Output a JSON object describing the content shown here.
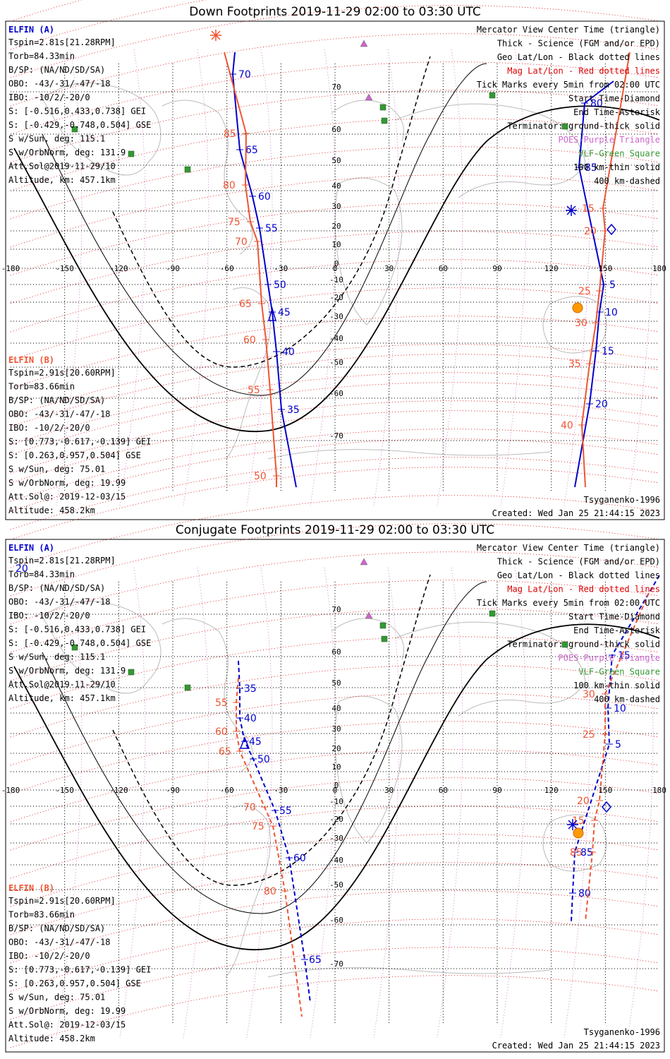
{
  "colors": {
    "elfin_a": "#0000cc",
    "elfin_b": "#ee5533",
    "mag_grid": "#dd0000",
    "geo_grid": "#000000",
    "poes": "#cc66cc",
    "vlf": "#339933",
    "sun": "#ff9900",
    "coast": "#bbbbbb"
  },
  "panels": [
    {
      "id": "down",
      "title": "Down Footprints 2019-11-29 02:00 to 03:30 UTC",
      "elfin_a_info": {
        "header": "ELFIN (A)",
        "lines": [
          "Tspin=2.81s[21.28RPM]",
          "Torb=84.33min",
          "B/SP: (NA/ND/SD/SA)",
          "OBO: -43/-31/-47/-18",
          "IBO: -10/2/-20/0",
          "S: [-0.516,0.433,0.738] GEI",
          "S: [-0.429,-0.748,0.504] GSE",
          "S w/Sun, deg: 115.1",
          "S w/OrbNorm, deg: 131.9",
          "Att.Sol@2019-11-29/10",
          "Altitude, km: 457.1km"
        ]
      },
      "elfin_b_info": {
        "header": "ELFIN (B)",
        "lines": [
          "Tspin=2.91s[20.60RPM]",
          "Torb=83.66min",
          "B/SP: (NA/ND/SD/SA)",
          "OBO: -43/-31/-47/-18",
          "IBO: -10/2/-20/0",
          "S: [0.773,-0.617,-0.139] GEI",
          "S: [0.263,0.957,0.504] GSE",
          "S w/Sun, deg: 75.01",
          "S w/OrbNorm, deg: 19.99",
          "Att.Sol@: 2019-12-03/15",
          "Altitude: 458.2km"
        ]
      },
      "legend": [
        {
          "text": "Mercator View Center Time (triangle)",
          "color": "#000000"
        },
        {
          "text": "Thick - Science (FGM and/or EPD)",
          "color": "#000000"
        },
        {
          "text": "Geo Lat/Lon - Black dotted lines",
          "color": "#000000"
        },
        {
          "text": "Mag Lat/Lon - Red dotted lines",
          "color": "#dd0000"
        },
        {
          "text": "Tick Marks every 5min from 02:00 UTC",
          "color": "#000000"
        },
        {
          "text": "Start Time-Diamond",
          "color": "#000000"
        },
        {
          "text": "End Time-Asterisk",
          "color": "#000000"
        },
        {
          "text": "Terminator: ground-thick solid",
          "color": "#000000"
        },
        {
          "text": "POES-Purple Triangle",
          "color": "#cc66cc"
        },
        {
          "text": "VLF-Green Square",
          "color": "#339933"
        },
        {
          "text": "100 km-thin solid",
          "color": "#000000"
        },
        {
          "text": "400 km-dashed",
          "color": "#000000"
        }
      ],
      "footer_left": "",
      "footer_right_model": "Tsyganenko-1996",
      "footer_right_created": "Created: Wed Jan 25 21:44:15 2023",
      "lon_ticks": [
        "-180",
        "-150",
        "-120",
        "-90",
        "-60",
        "-30",
        "0",
        "30",
        "60",
        "90",
        "120",
        "150",
        "180"
      ],
      "lat_ticks": [
        "70",
        "60",
        "50",
        "40",
        "30",
        "20",
        "10",
        "0",
        "-10",
        "-20",
        "-30",
        "-40",
        "-50",
        "-60",
        "-70"
      ],
      "track_a1_labels": [
        "70",
        "65",
        "60",
        "55",
        "50",
        "45",
        "40",
        "35"
      ],
      "track_b1_labels": [
        "85",
        "80",
        "75",
        "70",
        "65",
        "60",
        "55",
        "50"
      ],
      "track_a2_labels": [
        "80",
        "85",
        "5",
        "10",
        "15",
        "20"
      ],
      "track_b2_labels": [
        "15",
        "20",
        "25",
        "30",
        "35",
        "40"
      ]
    },
    {
      "id": "conj",
      "title": "Conjugate Footprints 2019-11-29 02:00 to 03:30 UTC",
      "elfin_a_info": {
        "header": "ELFIN (A)",
        "lines": [
          "Tspin=2.81s[21.28RPM]",
          "Torb=84.33min",
          "B/SP: (NA/ND/SD/SA)",
          "OBO: -43/-31/-47/-18",
          "IBO: -10/2/-20/0",
          "S: [-0.516,0.433,0.738] GEI",
          "S: [-0.429,-0.748,0.504] GSE",
          "S w/Sun, deg: 115.1",
          "S w/OrbNorm, deg: 131.9",
          "Att.Sol@2019-11-29/10",
          "Altitude, km: 457.1km"
        ]
      },
      "elfin_b_info": {
        "header": "ELFIN (B)",
        "lines": [
          "Tspin=2.91s[20.60RPM]",
          "Torb=83.66min",
          "B/SP: (NA/ND/SD/SA)",
          "OBO: -43/-31/-47/-18",
          "IBO: -10/2/-20/0",
          "S: [0.773,-0.617,-0.139] GEI",
          "S: [0.263,0.957,0.504] GSE",
          "S w/Sun, deg: 75.01",
          "S w/OrbNorm, deg: 19.99",
          "Att.Sol@: 2019-12-03/15",
          "Altitude: 458.2km"
        ]
      },
      "legend": [
        {
          "text": "Mercator View Center Time (triangle)",
          "color": "#000000"
        },
        {
          "text": "Thick - Science (FGM and/or EPD)",
          "color": "#000000"
        },
        {
          "text": "Geo Lat/Lon - Black dotted lines",
          "color": "#000000"
        },
        {
          "text": "Mag Lat/Lon - Red dotted lines",
          "color": "#dd0000"
        },
        {
          "text": "Tick Marks every 5min from 02:00 UTC",
          "color": "#000000"
        },
        {
          "text": "Start Time-Diamond",
          "color": "#000000"
        },
        {
          "text": "End Time-Asterisk",
          "color": "#000000"
        },
        {
          "text": "Terminator: ground-thick solid",
          "color": "#000000"
        },
        {
          "text": "POES-Purple Triangle",
          "color": "#cc66cc"
        },
        {
          "text": "VLF-Green Square",
          "color": "#339933"
        },
        {
          "text": "100 km-thin solid",
          "color": "#000000"
        },
        {
          "text": "400 km-dashed",
          "color": "#000000"
        }
      ],
      "footer_right_model": "Tsyganenko-1996",
      "footer_right_created": "Created: Wed Jan 25 21:44:15 2023",
      "lon_ticks": [
        "-180",
        "-150",
        "-120",
        "-90",
        "-60",
        "-30",
        "0",
        "30",
        "60",
        "90",
        "120",
        "150",
        "180"
      ],
      "lat_ticks": [
        "70",
        "60",
        "50",
        "40",
        "30",
        "20",
        "10",
        "0",
        "-10",
        "-20",
        "-30",
        "-40",
        "-50",
        "-60",
        "-70"
      ],
      "corner_label": "20",
      "track_a1_labels": [
        "35",
        "40",
        "45",
        "50",
        "55",
        "60",
        "65"
      ],
      "track_b1_labels": [
        "55",
        "60",
        "65",
        "70",
        "75",
        "80"
      ],
      "track_a2_labels": [
        "15",
        "10",
        "5",
        "85",
        "80"
      ],
      "track_b2_labels": [
        "30",
        "25",
        "20",
        "15",
        "85"
      ]
    }
  ]
}
